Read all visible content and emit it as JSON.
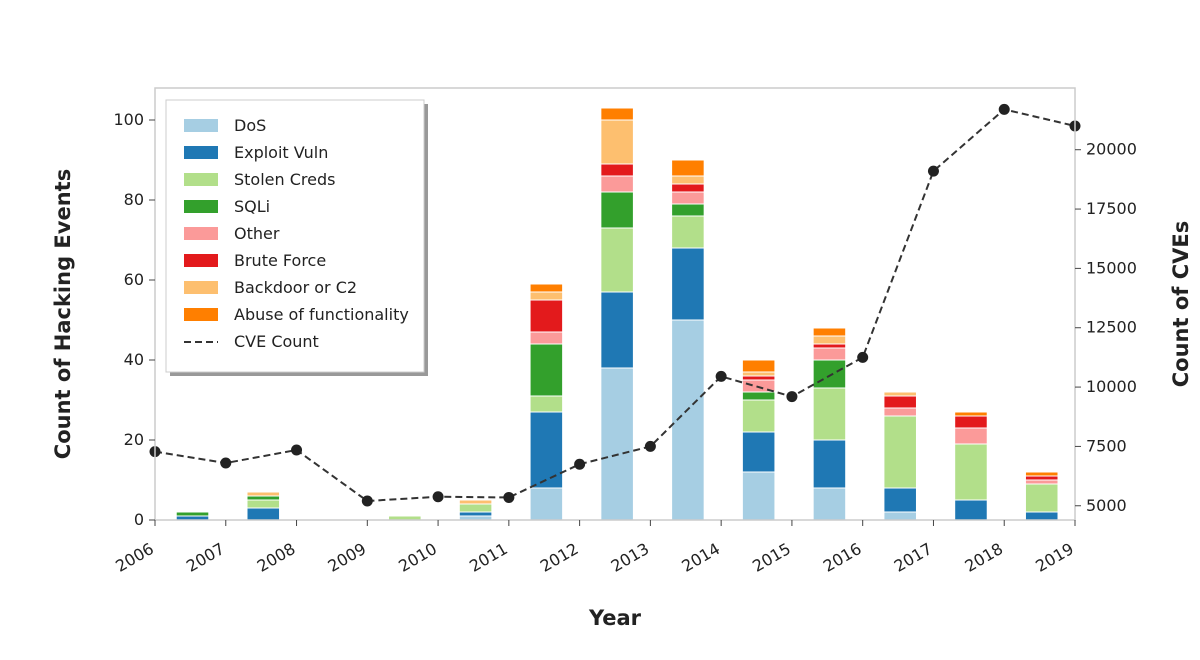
{
  "chart_data": {
    "type": "bar",
    "stacked": true,
    "xlabel": "Year",
    "ylabel": "Count of Hacking Events",
    "y2label": "Count of CVEs",
    "x_tick_labels": [
      "2006",
      "2007",
      "2008",
      "2009",
      "2010",
      "2011",
      "2012",
      "2013",
      "2014",
      "2015",
      "2016",
      "2017",
      "2018",
      "2019"
    ],
    "bar_categories": [
      "2007",
      "2008",
      "2009",
      "2010",
      "2011",
      "2012",
      "2013",
      "2014",
      "2015",
      "2016",
      "2017",
      "2018",
      "2019"
    ],
    "ylim": [
      0,
      108
    ],
    "yticks": [
      0,
      20,
      40,
      60,
      80,
      100
    ],
    "y2lim": [
      4400,
      22600
    ],
    "y2ticks": [
      5000,
      7500,
      10000,
      12500,
      15000,
      17500,
      20000
    ],
    "series": [
      {
        "name": "DoS",
        "color": "#a6cee3",
        "values": [
          0,
          0,
          0,
          0,
          1,
          8,
          38,
          50,
          12,
          8,
          2,
          0,
          0
        ]
      },
      {
        "name": "Exploit Vuln",
        "color": "#1f78b4",
        "values": [
          1,
          3,
          0,
          0,
          1,
          19,
          19,
          18,
          10,
          12,
          6,
          5,
          2
        ]
      },
      {
        "name": "Stolen Creds",
        "color": "#b2df8a",
        "values": [
          0,
          2,
          0,
          1,
          2,
          4,
          16,
          8,
          8,
          13,
          18,
          14,
          7
        ]
      },
      {
        "name": "SQLi",
        "color": "#33a02c",
        "values": [
          1,
          1,
          0,
          0,
          0,
          13,
          9,
          3,
          2,
          7,
          0,
          0,
          0
        ]
      },
      {
        "name": "Other",
        "color": "#fb9a99",
        "values": [
          0,
          0,
          0,
          0,
          0,
          3,
          4,
          3,
          3,
          3,
          2,
          4,
          1
        ]
      },
      {
        "name": "Brute Force",
        "color": "#e31a1c",
        "values": [
          0,
          0,
          0,
          0,
          0,
          8,
          3,
          2,
          1,
          1,
          3,
          3,
          1
        ]
      },
      {
        "name": "Backdoor or C2",
        "color": "#fdbf6f",
        "values": [
          0,
          1,
          0,
          0,
          1,
          2,
          11,
          2,
          1,
          2,
          1,
          0,
          0
        ]
      },
      {
        "name": "Abuse of functionality",
        "color": "#ff7f00",
        "values": [
          0,
          0,
          0,
          0,
          0,
          2,
          3,
          4,
          3,
          2,
          0,
          1,
          1
        ]
      }
    ],
    "line_series": {
      "name": "CVE Count",
      "color": "#333333",
      "x": [
        "2006",
        "2007",
        "2008",
        "2009",
        "2010",
        "2011",
        "2012",
        "2013",
        "2014",
        "2015",
        "2016",
        "2017",
        "2018",
        "2019"
      ],
      "values": [
        7280,
        6800,
        7350,
        5200,
        5380,
        5350,
        6750,
        7500,
        10450,
        9600,
        11250,
        19100,
        21700,
        21000
      ]
    },
    "legend_position": "upper-left",
    "grid": false
  }
}
